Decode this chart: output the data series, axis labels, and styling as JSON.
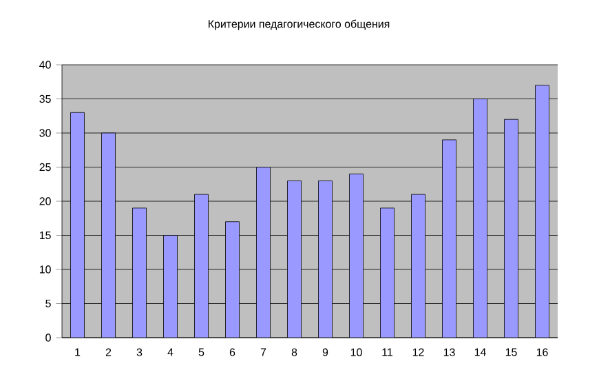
{
  "chart_data": {
    "type": "bar",
    "title": "Критерии педагогического общения",
    "categories": [
      "1",
      "2",
      "3",
      "4",
      "5",
      "6",
      "7",
      "8",
      "9",
      "10",
      "11",
      "12",
      "13",
      "14",
      "15",
      "16"
    ],
    "values": [
      33,
      30,
      19,
      15,
      21,
      17,
      25,
      23,
      23,
      24,
      19,
      21,
      29,
      35,
      32,
      37
    ],
    "color": "#9999ff",
    "ylim": [
      0,
      40
    ],
    "yticks": [
      0,
      5,
      10,
      15,
      20,
      25,
      30,
      35,
      40
    ],
    "grid": "y"
  }
}
